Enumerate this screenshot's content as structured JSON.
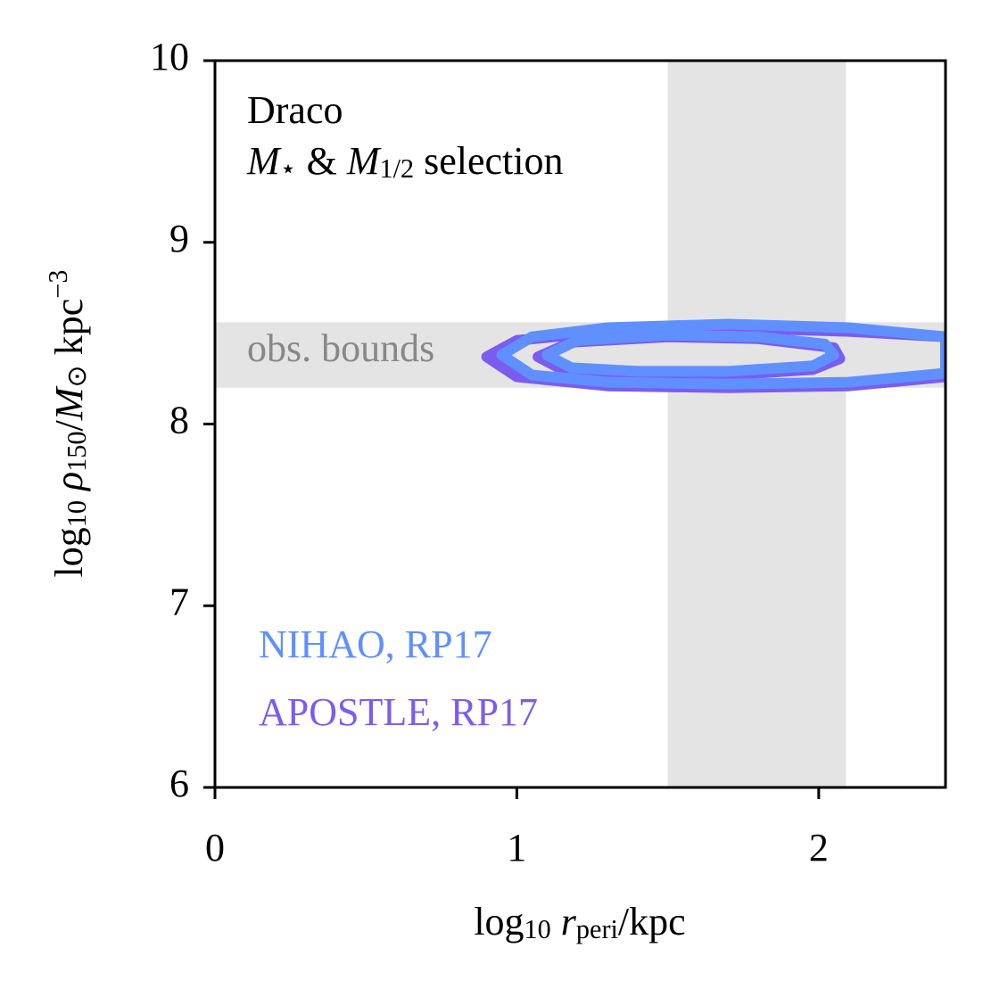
{
  "chart_data": {
    "type": "contour",
    "annotation_lines": [
      [
        "Draco"
      ],
      [
        "M",
        "⋆",
        " & ",
        "M",
        "1/2",
        " selection"
      ]
    ],
    "xlabel": [
      "log",
      "10",
      " r",
      "peri",
      "/kpc"
    ],
    "ylabel": [
      "log",
      "10",
      " ρ",
      "150",
      "/",
      "M",
      "⊙",
      " kpc",
      "−3"
    ],
    "xlim": [
      0,
      2.42
    ],
    "ylim": [
      6,
      10
    ],
    "xticks": [
      0,
      1,
      2
    ],
    "yticks": [
      6,
      7,
      8,
      9,
      10
    ],
    "band_color": "#e4e4e4",
    "x_band": [
      1.5,
      2.09
    ],
    "y_band": {
      "range": [
        8.2,
        8.56
      ],
      "label": "obs. bounds",
      "label_color": "#888888"
    },
    "series": [
      {
        "name": "APOSTLE, RP17",
        "color": "#7b5cf0",
        "contours": [
          {
            "x": [
              0.9,
              1.0,
              1.3,
              1.7,
              2.1,
              2.42,
              2.42,
              2.1,
              1.7,
              1.3,
              1.0
            ],
            "y": [
              8.37,
              8.46,
              8.51,
              8.53,
              8.51,
              8.48,
              8.26,
              8.21,
              8.2,
              8.21,
              8.26
            ]
          },
          {
            "x": [
              1.07,
              1.18,
              1.5,
              1.8,
              2.05,
              2.07,
              1.98,
              1.7,
              1.4,
              1.15
            ],
            "y": [
              8.37,
              8.45,
              8.48,
              8.47,
              8.42,
              8.36,
              8.3,
              8.27,
              8.27,
              8.3
            ]
          }
        ]
      },
      {
        "name": "NIHAO, RP17",
        "color": "#6090ff",
        "contours": [
          {
            "x": [
              0.95,
              1.05,
              1.3,
              1.7,
              2.1,
              2.42,
              2.42,
              2.1,
              1.7,
              1.3,
              1.05
            ],
            "y": [
              8.38,
              8.48,
              8.53,
              8.55,
              8.53,
              8.48,
              8.28,
              8.23,
              8.22,
              8.23,
              8.27
            ]
          },
          {
            "x": [
              1.1,
              1.2,
              1.5,
              1.8,
              2.02,
              2.05,
              1.98,
              1.7,
              1.4,
              1.18
            ],
            "y": [
              8.38,
              8.46,
              8.49,
              8.48,
              8.44,
              8.38,
              8.32,
              8.29,
              8.29,
              8.31
            ]
          }
        ]
      }
    ]
  }
}
